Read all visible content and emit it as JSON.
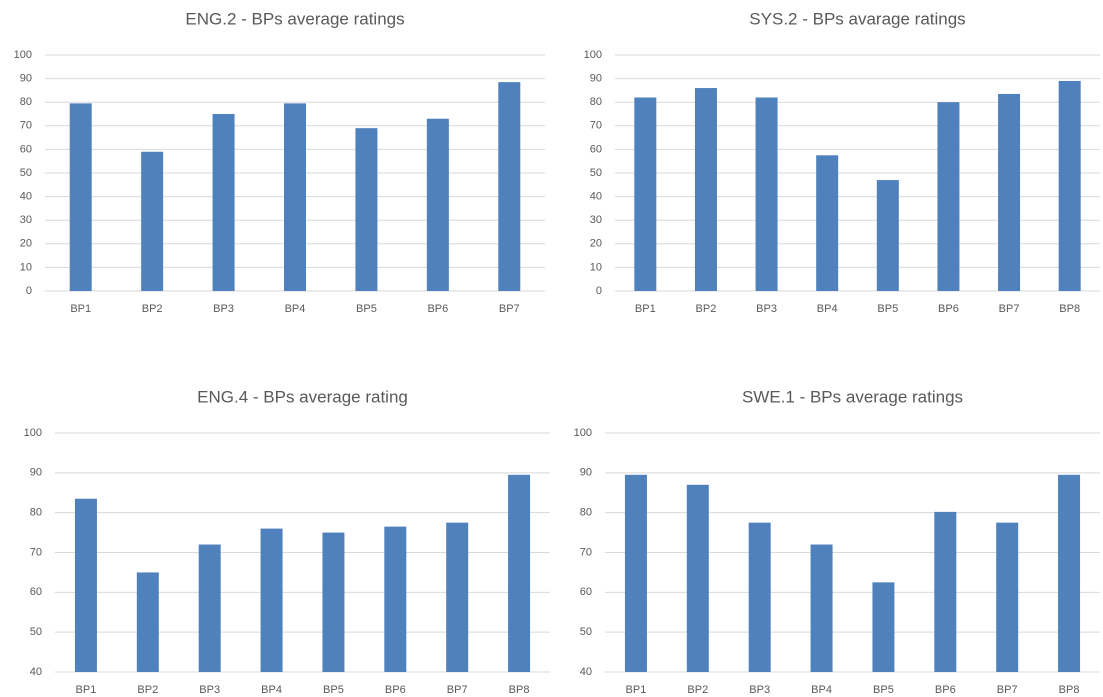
{
  "chart_data": [
    {
      "type": "bar",
      "title": "ENG.2 - BPs average ratings",
      "categories": [
        "BP1",
        "BP2",
        "BP3",
        "BP4",
        "BP5",
        "BP6",
        "BP7"
      ],
      "values": [
        79.5,
        59,
        75,
        79.5,
        69,
        73,
        88.5
      ],
      "color": "#4f81bd",
      "ylim": [
        0,
        100
      ],
      "yticks": [
        0,
        10,
        20,
        30,
        40,
        50,
        60,
        70,
        80,
        90,
        100
      ],
      "grid": true
    },
    {
      "type": "bar",
      "title": "SYS.2 - BPs avarage ratings",
      "categories": [
        "BP1",
        "BP2",
        "BP3",
        "BP4",
        "BP5",
        "BP6",
        "BP7",
        "BP8"
      ],
      "values": [
        82,
        86,
        82,
        57.5,
        47,
        80,
        83.5,
        89
      ],
      "color": "#4f81bd",
      "ylim": [
        0,
        100
      ],
      "yticks": [
        0,
        10,
        20,
        30,
        40,
        50,
        60,
        70,
        80,
        90,
        100
      ],
      "grid": true
    },
    {
      "type": "bar",
      "title": "ENG.4 - BPs average rating",
      "categories": [
        "BP1",
        "BP2",
        "BP3",
        "BP4",
        "BP5",
        "BP6",
        "BP7",
        "BP8"
      ],
      "values": [
        83.5,
        65,
        72,
        76,
        75,
        76.5,
        77.5,
        89.5
      ],
      "color": "#4f81bd",
      "ylim": [
        40,
        100
      ],
      "yticks": [
        40,
        50,
        60,
        70,
        80,
        90,
        100
      ],
      "grid": true
    },
    {
      "type": "bar",
      "title": "SWE.1 - BPs average ratings",
      "categories": [
        "BP1",
        "BP2",
        "BP3",
        "BP4",
        "BP5",
        "BP6",
        "BP7",
        "BP8"
      ],
      "values": [
        89.5,
        87,
        77.5,
        72,
        62.5,
        80.2,
        77.5,
        89.5
      ],
      "color": "#4f81bd",
      "ylim": [
        40,
        100
      ],
      "yticks": [
        40,
        50,
        60,
        70,
        80,
        90,
        100
      ],
      "grid": true
    }
  ]
}
